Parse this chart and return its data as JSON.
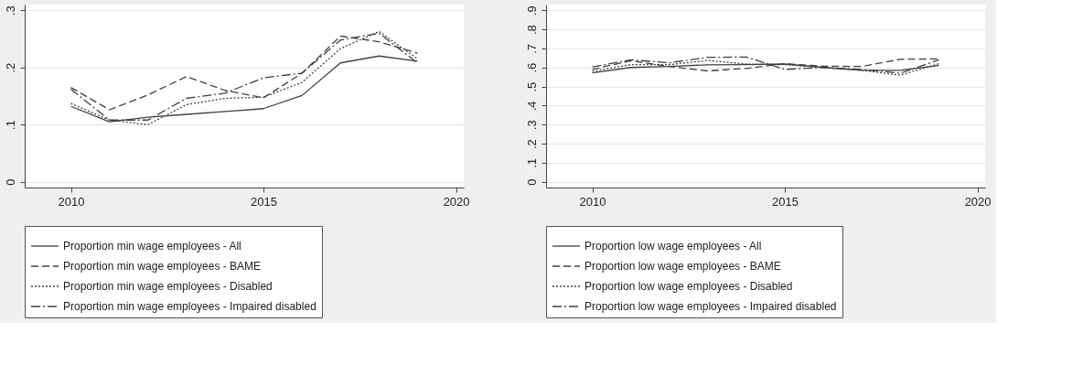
{
  "chart_data": [
    {
      "type": "line",
      "x": [
        2010,
        2011,
        2012,
        2013,
        2014,
        2015,
        2016,
        2017,
        2018,
        2019
      ],
      "xlim": [
        2008.8,
        2020.2
      ],
      "xticks": [
        2010,
        2015,
        2020
      ],
      "ylim": [
        -0.01,
        0.31
      ],
      "yticks": [
        0,
        {
          "value": 0.1,
          "label": ".1"
        },
        {
          "value": 0.2,
          "label": ".2"
        },
        {
          "value": 0.3,
          "label": ".3"
        }
      ],
      "grid": "y",
      "legend": "bottom",
      "series": [
        {
          "name": "Proportion min wage employees - All",
          "color": "#404040",
          "line_style": "solid",
          "values": [
            0.132,
            0.105,
            0.113,
            0.118,
            0.123,
            0.128,
            0.151,
            0.208,
            0.22,
            0.211
          ]
        },
        {
          "name": "Proportion min wage employees - BAME",
          "color": "#404040",
          "line_style": "dashed",
          "values": [
            0.165,
            0.126,
            0.152,
            0.184,
            0.16,
            0.147,
            0.19,
            0.255,
            0.245,
            0.225
          ]
        },
        {
          "name": "Proportion min wage employees - Disabled",
          "color": "#404040",
          "line_style": "dotted",
          "values": [
            0.137,
            0.108,
            0.1,
            0.135,
            0.146,
            0.148,
            0.174,
            0.233,
            0.263,
            0.215
          ]
        },
        {
          "name": "Proportion min wage employees - Impaired disabled",
          "color": "#404040",
          "line_style": "dashdot",
          "values": [
            0.162,
            0.108,
            0.108,
            0.146,
            0.155,
            0.182,
            0.19,
            0.248,
            0.26,
            0.208
          ]
        }
      ]
    },
    {
      "type": "line",
      "x": [
        2010,
        2011,
        2012,
        2013,
        2014,
        2015,
        2016,
        2017,
        2018,
        2019
      ],
      "xlim": [
        2008.8,
        2020.2
      ],
      "xticks": [
        2010,
        2015,
        2020
      ],
      "ylim": [
        -0.03,
        0.93
      ],
      "yticks": [
        0,
        {
          "value": 0.1,
          "label": ".1"
        },
        {
          "value": 0.2,
          "label": ".2"
        },
        {
          "value": 0.3,
          "label": ".3"
        },
        {
          "value": 0.4,
          "label": ".4"
        },
        {
          "value": 0.5,
          "label": ".5"
        },
        {
          "value": 0.6,
          "label": ".6"
        },
        {
          "value": 0.7,
          "label": ".7"
        },
        {
          "value": 0.8,
          "label": ".8"
        },
        {
          "value": 0.9,
          "label": ".9"
        }
      ],
      "grid": "y",
      "legend": "bottom",
      "series": [
        {
          "name": "Proportion low wage employees - All",
          "color": "#404040",
          "line_style": "solid",
          "values": [
            0.572,
            0.6,
            0.605,
            0.614,
            0.615,
            0.618,
            0.6,
            0.585,
            0.585,
            0.61
          ]
        },
        {
          "name": "Proportion low wage employees - BAME",
          "color": "#404040",
          "line_style": "dashed",
          "values": [
            0.59,
            0.635,
            0.605,
            0.582,
            0.595,
            0.62,
            0.607,
            0.605,
            0.643,
            0.645
          ]
        },
        {
          "name": "Proportion low wage employees - Disabled",
          "color": "#404040",
          "line_style": "dotted",
          "values": [
            0.58,
            0.615,
            0.615,
            0.637,
            0.618,
            0.615,
            0.6,
            0.585,
            0.56,
            0.62
          ]
        },
        {
          "name": "Proportion low wage employees - Impaired disabled",
          "color": "#404040",
          "line_style": "dashdot",
          "values": [
            0.603,
            0.64,
            0.625,
            0.653,
            0.655,
            0.59,
            0.6,
            0.59,
            0.57,
            0.64
          ]
        }
      ]
    }
  ]
}
